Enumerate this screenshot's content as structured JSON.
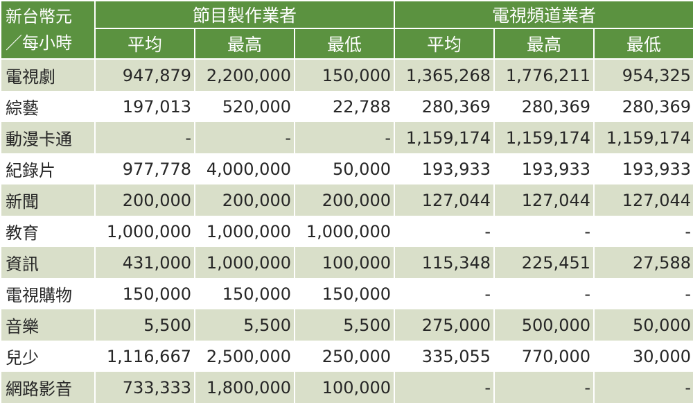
{
  "header": {
    "corner_line1": "新台幣元",
    "corner_line2": "／每小時",
    "group1": "節目製作業者",
    "group2": "電視頻道業者",
    "sub": [
      "平均",
      "最高",
      "最低",
      "平均",
      "最高",
      "最低"
    ]
  },
  "colors": {
    "header_bg": "#5b9240",
    "row_shade": "#d9dfc9",
    "text": "#262626"
  },
  "rows": [
    {
      "category": "電視劇",
      "values": [
        "947,879",
        "2,200,000",
        "150,000",
        "1,365,268",
        "1,776,211",
        "954,325"
      ]
    },
    {
      "category": "綜藝",
      "values": [
        "197,013",
        "520,000",
        "22,788",
        "280,369",
        "280,369",
        "280,369"
      ]
    },
    {
      "category": "動漫卡通",
      "values": [
        "-",
        "-",
        "-",
        "1,159,174",
        "1,159,174",
        "1,159,174"
      ]
    },
    {
      "category": "紀錄片",
      "values": [
        "977,778",
        "4,000,000",
        "50,000",
        "193,933",
        "193,933",
        "193,933"
      ]
    },
    {
      "category": "新聞",
      "values": [
        "200,000",
        "200,000",
        "200,000",
        "127,044",
        "127,044",
        "127,044"
      ]
    },
    {
      "category": "教育",
      "values": [
        "1,000,000",
        "1,000,000",
        "1,000,000",
        "-",
        "-",
        "-"
      ]
    },
    {
      "category": "資訊",
      "values": [
        "431,000",
        "1,000,000",
        "100,000",
        "115,348",
        "225,451",
        "27,588"
      ]
    },
    {
      "category": "電視購物",
      "values": [
        "150,000",
        "150,000",
        "150,000",
        "-",
        "-",
        "-"
      ]
    },
    {
      "category": "音樂",
      "values": [
        "5,500",
        "5,500",
        "5,500",
        "275,000",
        "500,000",
        "50,000"
      ]
    },
    {
      "category": "兒少",
      "values": [
        "1,116,667",
        "2,500,000",
        "250,000",
        "335,055",
        "770,000",
        "30,000"
      ]
    },
    {
      "category": "網路影音",
      "values": [
        "733,333",
        "1,800,000",
        "100,000",
        "-",
        "-",
        "-"
      ]
    }
  ]
}
